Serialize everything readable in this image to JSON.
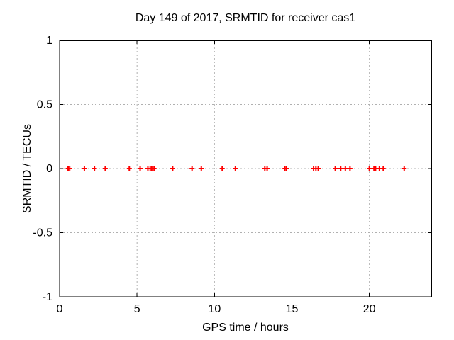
{
  "window": {
    "background": "#ffffff"
  },
  "chart_data": {
    "type": "scatter",
    "title": "Day 149 of 2017, SRMTID for receiver cas1",
    "xlabel": "GPS time / hours",
    "ylabel": "SRMTID / TECUs",
    "xlim": [
      0,
      24
    ],
    "ylim": [
      -1,
      1
    ],
    "xticks": [
      0,
      5,
      10,
      15,
      20
    ],
    "yticks": [
      -1,
      -0.5,
      0,
      0.5,
      1
    ],
    "grid": true,
    "legend_position": "none",
    "marker": "plus",
    "series": [
      {
        "name": "SRMTID",
        "x": [
          0.55,
          0.65,
          1.6,
          2.25,
          2.95,
          4.5,
          5.2,
          5.7,
          5.85,
          5.95,
          6.1,
          7.3,
          8.55,
          9.15,
          10.5,
          11.35,
          13.25,
          13.4,
          14.55,
          14.65,
          16.4,
          16.55,
          16.7,
          17.8,
          18.15,
          18.45,
          18.75,
          20.0,
          20.3,
          20.4,
          20.65,
          20.9,
          22.25
        ],
        "y": [
          0,
          0,
          0,
          0,
          0,
          0,
          0,
          0,
          0,
          0,
          0,
          0,
          0,
          0,
          0,
          0,
          0,
          0,
          0,
          0,
          0,
          0,
          0,
          0,
          0,
          0,
          0,
          0,
          0,
          0,
          0,
          0,
          0
        ]
      }
    ],
    "colors": {
      "marker": "#ff0000",
      "grid": "#b0b0b0",
      "border": "#000000",
      "text": "#000000",
      "background": "#ffffff"
    }
  }
}
